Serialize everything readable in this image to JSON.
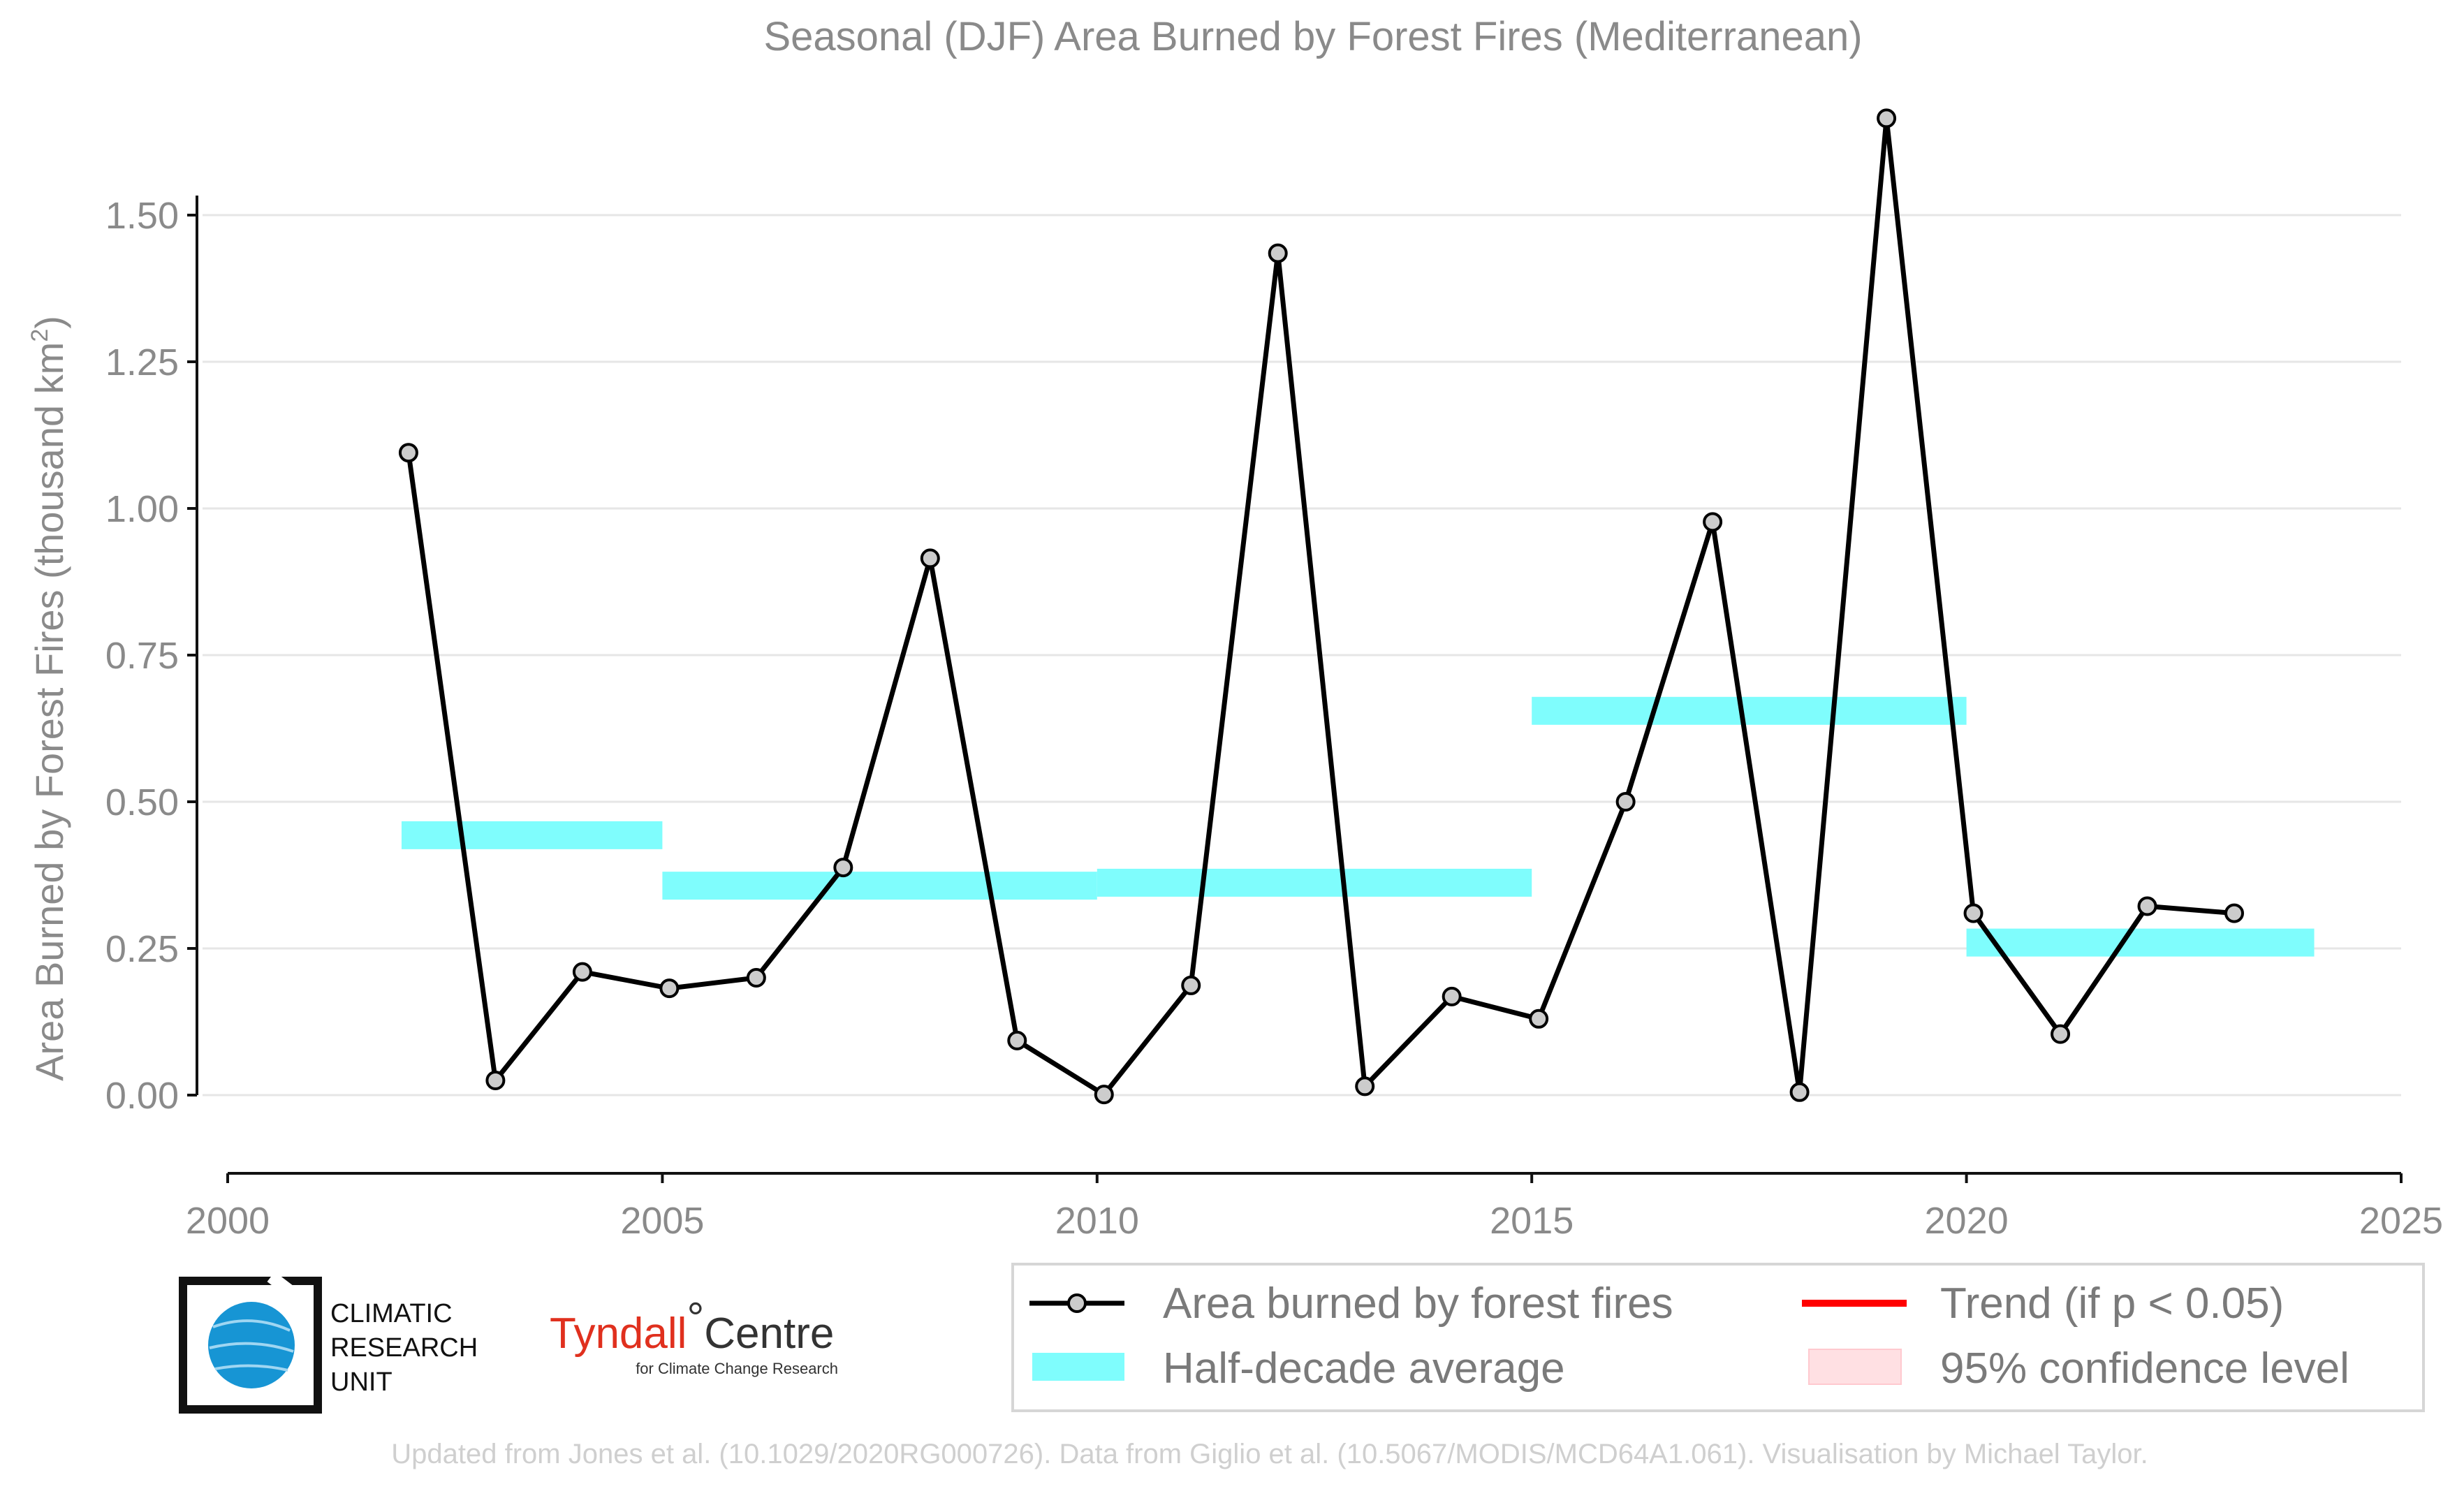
{
  "chart_data": {
    "type": "line",
    "title": "Seasonal (DJF) Area Burned by Forest Fires (Mediterranean)",
    "ylabel_main": "Area Burned by Forest Fires (thousand km",
    "ylabel_sup": "2",
    "ylabel_close": ")",
    "xlim": [
      2000,
      2025
    ],
    "ylim": [
      -0.13,
      1.72
    ],
    "xticks": [
      2000,
      2005,
      2010,
      2015,
      2020,
      2025
    ],
    "xtick_labels": [
      "2000",
      "2005",
      "2010",
      "2015",
      "2020",
      "2025"
    ],
    "yticks": [
      0,
      0.25,
      0.5,
      0.75,
      1.0,
      1.25,
      1.5
    ],
    "ytick_labels": [
      "0.00",
      "0.25",
      "0.50",
      "0.75",
      "1.00",
      "1.25",
      "1.50"
    ],
    "grid": "horizontal",
    "series": [
      {
        "name": "Area burned by forest fires",
        "kind": "line-markers",
        "color": "#000000",
        "marker_fill": "#cccccc",
        "x": [
          2002.08,
          2003.08,
          2004.08,
          2005.08,
          2006.08,
          2007.08,
          2008.08,
          2009.08,
          2010.08,
          2011.08,
          2012.08,
          2013.08,
          2014.08,
          2015.08,
          2016.08,
          2017.08,
          2018.08,
          2019.08,
          2020.08,
          2021.08,
          2022.08,
          2023.08
        ],
        "values": [
          1.095,
          0.025,
          0.21,
          0.182,
          0.2,
          0.388,
          0.915,
          0.093,
          0.001,
          0.187,
          1.435,
          0.015,
          0.168,
          0.13,
          0.5,
          0.977,
          0.005,
          1.665,
          0.31,
          0.104,
          0.322,
          0.31
        ]
      },
      {
        "name": "Half-decade average",
        "kind": "bands",
        "color": "#7ffdfd",
        "segments": [
          {
            "x0": 2002.0,
            "x1": 2005.0,
            "value": 0.443
          },
          {
            "x0": 2005.0,
            "x1": 2010.0,
            "value": 0.357
          },
          {
            "x0": 2010.0,
            "x1": 2015.0,
            "value": 0.362
          },
          {
            "x0": 2015.0,
            "x1": 2020.0,
            "value": 0.655
          },
          {
            "x0": 2020.0,
            "x1": 2024.0,
            "value": 0.26
          }
        ]
      }
    ],
    "legend": {
      "position": "bottom-right",
      "items": [
        {
          "label": "Area burned by forest fires",
          "kind": "line-marker",
          "color": "#000000"
        },
        {
          "label": "Trend (if p < 0.05)",
          "kind": "line",
          "color": "#ff0000"
        },
        {
          "label": "Half-decade average",
          "kind": "band",
          "color": "#7ffdfd"
        },
        {
          "label": "95% confidence level",
          "kind": "band",
          "color": "#ffe0e3"
        }
      ]
    }
  },
  "logos": {
    "cru_line1": "CLIMATIC",
    "cru_line2": "RESEARCH",
    "cru_line3": "UNIT",
    "tyndall_main": "Tyndall",
    "tyndall_degree": "°",
    "tyndall_centre": "Centre",
    "tyndall_sub": "for Climate Change Research"
  },
  "footer": "Updated from Jones et al. (10.1029/2020RG000726). Data from Giglio et al. (10.5067/MODIS/MCD64A1.061). Visualisation by Michael Taylor."
}
